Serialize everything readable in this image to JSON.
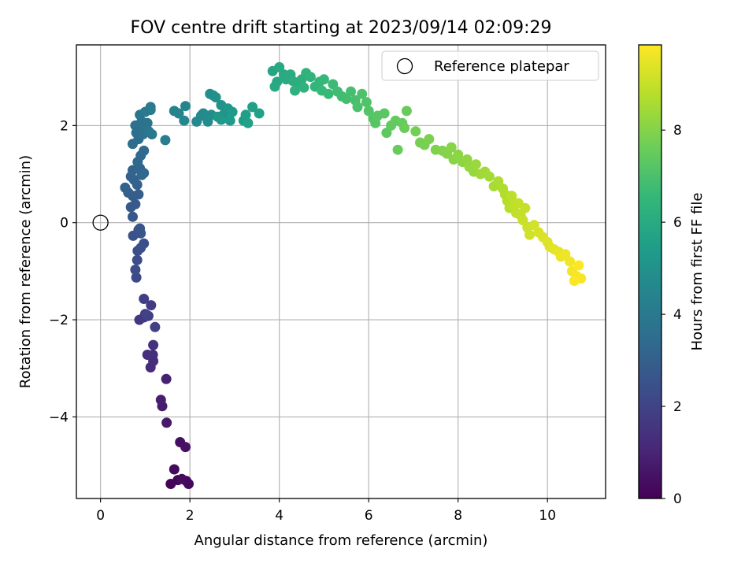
{
  "chart_data": {
    "type": "scatter",
    "title": "FOV centre drift starting at 2023/09/14 02:09:29",
    "xlabel": "Angular distance from reference (arcmin)",
    "ylabel": "Rotation from reference (arcmin)",
    "xlim": [
      -0.54,
      11.3
    ],
    "ylim": [
      -5.68,
      3.66
    ],
    "xticks": [
      0,
      2,
      4,
      6,
      8,
      10
    ],
    "xtick_labels": [
      "0",
      "2",
      "4",
      "6",
      "8",
      "10"
    ],
    "yticks": [
      -4,
      -2,
      0,
      2
    ],
    "ytick_labels": [
      "−4",
      "−2",
      "0",
      "2"
    ],
    "grid": true,
    "legend": {
      "location": "upper right",
      "entries": [
        "Reference platepar"
      ]
    },
    "reference_point": {
      "name": "Reference platepar",
      "x": 0,
      "y": 0,
      "marker": "hollow circle"
    },
    "colorbar": {
      "label": "Hours from first FF file",
      "range": [
        0,
        9.85
      ],
      "ticks": [
        0,
        2,
        4,
        6,
        8
      ],
      "tick_labels": [
        "0",
        "2",
        "4",
        "6",
        "8"
      ],
      "colormap": "viridis",
      "colors": [
        "#440154",
        "#482878",
        "#3e4989",
        "#31688e",
        "#26828e",
        "#1f9e89",
        "#35b779",
        "#6ece58",
        "#b5de2b",
        "#fde725"
      ]
    },
    "points": [
      [
        1.57,
        -5.38,
        0.05
      ],
      [
        1.73,
        -5.3,
        0.1
      ],
      [
        1.92,
        -5.32,
        0.15
      ],
      [
        1.97,
        -5.38,
        0.2
      ],
      [
        1.65,
        -5.08,
        0.25
      ],
      [
        1.82,
        -5.28,
        0.3
      ],
      [
        1.78,
        -4.52,
        0.4
      ],
      [
        1.9,
        -4.62,
        0.45
      ],
      [
        1.48,
        -4.12,
        0.7
      ],
      [
        1.38,
        -3.78,
        0.8
      ],
      [
        1.35,
        -3.65,
        0.85
      ],
      [
        1.47,
        -3.22,
        0.9
      ],
      [
        1.12,
        -2.98,
        1.2
      ],
      [
        1.18,
        -2.85,
        1.25
      ],
      [
        1.05,
        -2.72,
        1.3
      ],
      [
        1.17,
        -2.72,
        1.35
      ],
      [
        1.18,
        -2.52,
        1.4
      ],
      [
        0.87,
        -2.0,
        1.6
      ],
      [
        0.97,
        -1.95,
        1.65
      ],
      [
        1.07,
        -1.92,
        1.7
      ],
      [
        1.0,
        -1.88,
        1.75
      ],
      [
        1.13,
        -1.7,
        1.8
      ],
      [
        0.97,
        -1.57,
        1.85
      ],
      [
        1.22,
        -2.15,
        1.9
      ],
      [
        1.03,
        -1.9,
        1.95
      ],
      [
        0.8,
        -1.13,
        2.2
      ],
      [
        0.78,
        -0.97,
        2.25
      ],
      [
        0.82,
        -0.77,
        2.3
      ],
      [
        0.83,
        -0.58,
        2.35
      ],
      [
        0.9,
        -0.52,
        2.4
      ],
      [
        0.97,
        -0.43,
        2.45
      ],
      [
        0.73,
        -0.27,
        2.5
      ],
      [
        0.85,
        -0.15,
        2.55
      ],
      [
        0.9,
        -0.22,
        2.6
      ],
      [
        0.88,
        -0.12,
        2.62
      ],
      [
        0.72,
        0.12,
        2.7
      ],
      [
        0.68,
        0.32,
        2.75
      ],
      [
        0.78,
        0.38,
        2.8
      ],
      [
        0.72,
        0.55,
        2.85
      ],
      [
        0.85,
        0.58,
        2.9
      ],
      [
        0.62,
        0.62,
        2.95
      ],
      [
        0.55,
        0.72,
        3.0
      ],
      [
        0.75,
        0.88,
        3.05
      ],
      [
        0.68,
        0.95,
        3.1
      ],
      [
        0.82,
        0.78,
        3.12
      ],
      [
        0.72,
        1.08,
        3.15
      ],
      [
        0.88,
        1.12,
        3.2
      ],
      [
        0.92,
        0.98,
        3.25
      ],
      [
        0.97,
        1.02,
        3.28
      ],
      [
        0.83,
        1.25,
        3.3
      ],
      [
        0.9,
        1.38,
        3.35
      ],
      [
        0.97,
        1.48,
        3.4
      ],
      [
        0.72,
        1.62,
        3.45
      ],
      [
        0.85,
        1.72,
        3.5
      ],
      [
        0.8,
        1.85,
        3.55
      ],
      [
        0.95,
        1.82,
        3.6
      ],
      [
        0.78,
        2.0,
        3.65
      ],
      [
        0.92,
        2.08,
        3.7
      ],
      [
        0.98,
        1.95,
        3.75
      ],
      [
        1.05,
        2.05,
        3.8
      ],
      [
        0.88,
        2.22,
        3.85
      ],
      [
        1.08,
        1.88,
        3.9
      ],
      [
        1.15,
        1.82,
        3.95
      ],
      [
        1.0,
        2.28,
        4.0
      ],
      [
        1.12,
        2.32,
        4.05
      ],
      [
        1.12,
        2.38,
        4.1
      ],
      [
        1.45,
        1.7,
        4.2
      ],
      [
        1.65,
        2.3,
        4.4
      ],
      [
        1.75,
        2.25,
        4.45
      ],
      [
        1.9,
        2.4,
        4.5
      ],
      [
        1.87,
        2.1,
        4.55
      ],
      [
        2.15,
        2.08,
        4.6
      ],
      [
        2.25,
        2.2,
        4.65
      ],
      [
        2.3,
        2.25,
        4.7
      ],
      [
        2.4,
        2.08,
        4.75
      ],
      [
        2.48,
        2.22,
        4.8
      ],
      [
        2.52,
        2.62,
        4.85
      ],
      [
        2.45,
        2.65,
        4.9
      ],
      [
        2.58,
        2.58,
        4.95
      ],
      [
        2.7,
        2.42,
        5.0
      ],
      [
        2.75,
        2.22,
        5.05
      ],
      [
        2.8,
        2.3,
        5.1
      ],
      [
        2.85,
        2.35,
        5.15
      ],
      [
        2.62,
        2.18,
        5.2
      ],
      [
        2.7,
        2.12,
        5.25
      ],
      [
        2.9,
        2.1,
        5.3
      ],
      [
        2.95,
        2.28,
        5.35
      ],
      [
        3.2,
        2.1,
        5.45
      ],
      [
        3.25,
        2.22,
        5.5
      ],
      [
        3.4,
        2.38,
        5.55
      ],
      [
        3.55,
        2.25,
        5.6
      ],
      [
        3.3,
        2.05,
        5.62
      ],
      [
        3.85,
        3.12,
        5.8
      ],
      [
        3.95,
        2.9,
        5.85
      ],
      [
        4.0,
        3.2,
        5.9
      ],
      [
        3.9,
        2.8,
        5.95
      ],
      [
        4.1,
        3.05,
        6.0
      ],
      [
        4.15,
        2.95,
        6.02
      ],
      [
        4.25,
        3.05,
        6.05
      ],
      [
        4.3,
        2.92,
        6.1
      ],
      [
        4.4,
        2.85,
        6.15
      ],
      [
        4.5,
        2.95,
        6.2
      ],
      [
        4.35,
        2.72,
        6.25
      ],
      [
        4.55,
        2.78,
        6.3
      ],
      [
        4.6,
        3.08,
        6.35
      ],
      [
        4.7,
        3.0,
        6.4
      ],
      [
        4.8,
        2.8,
        6.45
      ],
      [
        4.9,
        2.9,
        6.5
      ],
      [
        5.0,
        2.95,
        6.55
      ],
      [
        4.95,
        2.72,
        6.6
      ],
      [
        5.1,
        2.65,
        6.65
      ],
      [
        5.2,
        2.85,
        6.7
      ],
      [
        5.3,
        2.7,
        6.75
      ],
      [
        5.4,
        2.6,
        6.8
      ],
      [
        5.5,
        2.55,
        6.85
      ],
      [
        5.6,
        2.7,
        6.9
      ],
      [
        5.7,
        2.52,
        6.95
      ],
      [
        5.75,
        2.38,
        7.0
      ],
      [
        5.85,
        2.65,
        7.05
      ],
      [
        5.95,
        2.48,
        7.1
      ],
      [
        6.0,
        2.3,
        7.15
      ],
      [
        6.1,
        2.15,
        7.2
      ],
      [
        6.15,
        2.05,
        7.22
      ],
      [
        6.2,
        2.2,
        7.25
      ],
      [
        6.35,
        2.25,
        7.3
      ],
      [
        6.4,
        1.85,
        7.35
      ],
      [
        6.5,
        2.0,
        7.4
      ],
      [
        6.6,
        2.1,
        7.45
      ],
      [
        6.75,
        2.05,
        7.5
      ],
      [
        6.85,
        2.3,
        7.52
      ],
      [
        6.65,
        1.5,
        7.55
      ],
      [
        6.8,
        1.95,
        7.58
      ],
      [
        7.05,
        1.88,
        7.7
      ],
      [
        7.15,
        1.65,
        7.75
      ],
      [
        7.25,
        1.6,
        7.8
      ],
      [
        7.35,
        1.72,
        7.85
      ],
      [
        7.5,
        1.5,
        7.9
      ],
      [
        7.65,
        1.48,
        7.95
      ],
      [
        7.75,
        1.42,
        8.0
      ],
      [
        7.85,
        1.55,
        8.05
      ],
      [
        7.9,
        1.3,
        8.1
      ],
      [
        8.0,
        1.4,
        8.12
      ],
      [
        8.1,
        1.25,
        8.15
      ],
      [
        8.2,
        1.3,
        8.2
      ],
      [
        8.25,
        1.15,
        8.25
      ],
      [
        8.35,
        1.05,
        8.3
      ],
      [
        8.4,
        1.2,
        8.35
      ],
      [
        8.5,
        1.0,
        8.4
      ],
      [
        8.6,
        1.05,
        8.45
      ],
      [
        8.7,
        0.95,
        8.5
      ],
      [
        8.8,
        0.75,
        8.55
      ],
      [
        8.9,
        0.85,
        8.6
      ],
      [
        9.0,
        0.7,
        8.65
      ],
      [
        9.05,
        0.58,
        8.7
      ],
      [
        9.1,
        0.45,
        8.75
      ],
      [
        9.15,
        0.3,
        8.8
      ],
      [
        9.2,
        0.55,
        8.85
      ],
      [
        9.25,
        0.35,
        8.9
      ],
      [
        9.3,
        0.2,
        8.92
      ],
      [
        9.35,
        0.4,
        8.95
      ],
      [
        9.4,
        0.15,
        9.0
      ],
      [
        9.5,
        0.3,
        9.02
      ],
      [
        9.45,
        0.05,
        9.05
      ],
      [
        9.55,
        -0.1,
        9.1
      ],
      [
        9.6,
        -0.25,
        9.15
      ],
      [
        9.7,
        -0.05,
        9.2
      ],
      [
        9.8,
        -0.2,
        9.25
      ],
      [
        9.9,
        -0.3,
        9.3
      ],
      [
        10.0,
        -0.4,
        9.35
      ],
      [
        10.05,
        -0.5,
        9.4
      ],
      [
        10.15,
        -0.55,
        9.45
      ],
      [
        10.25,
        -0.6,
        9.5
      ],
      [
        10.3,
        -0.7,
        9.55
      ],
      [
        10.4,
        -0.65,
        9.6
      ],
      [
        10.5,
        -0.8,
        9.65
      ],
      [
        10.55,
        -1.0,
        9.7
      ],
      [
        10.65,
        -1.1,
        9.75
      ],
      [
        10.75,
        -1.15,
        9.78
      ],
      [
        10.6,
        -1.2,
        9.82
      ],
      [
        10.7,
        -0.88,
        9.85
      ]
    ]
  }
}
